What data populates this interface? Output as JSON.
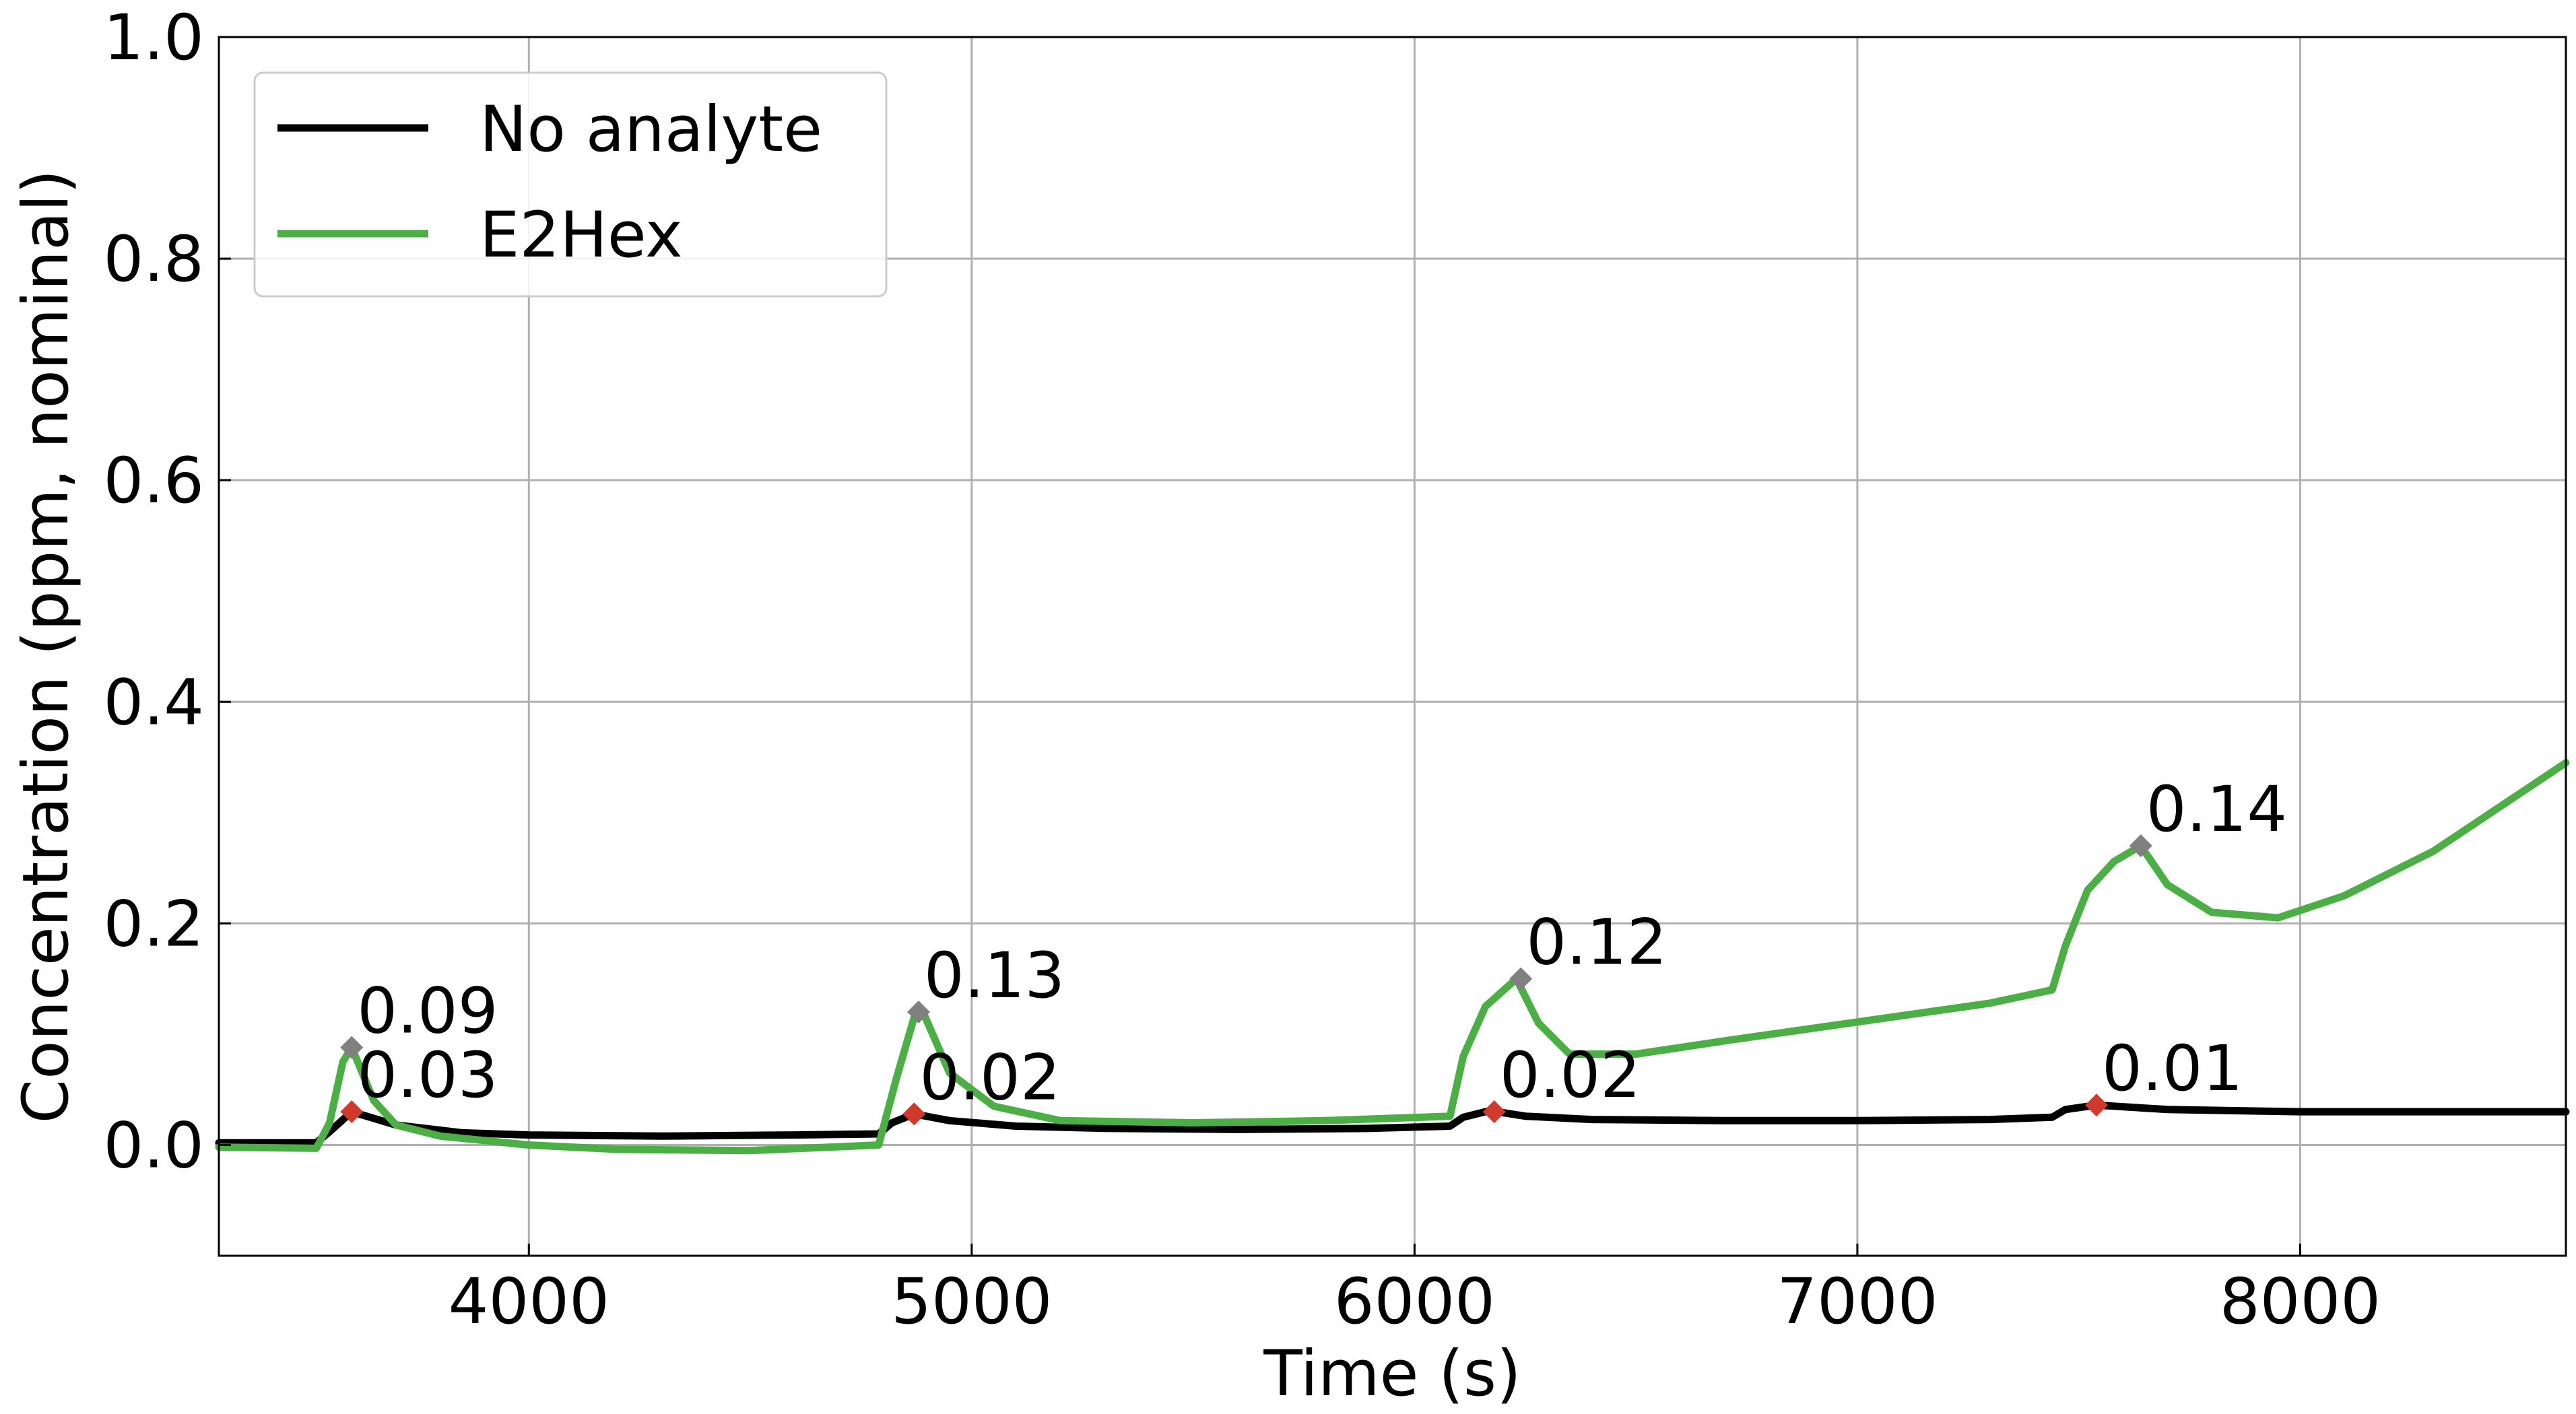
{
  "chart_data": {
    "type": "line",
    "title": "",
    "xlabel": "Time (s)",
    "ylabel": "Concentration (ppm, nominal)",
    "xlim": [
      3300,
      8600
    ],
    "ylim": [
      -0.1,
      1.0
    ],
    "xticks": [
      4000,
      5000,
      6000,
      7000,
      8000
    ],
    "xtick_labels": [
      "4000",
      "5000",
      "6000",
      "7000",
      "8000"
    ],
    "yticks": [
      0.0,
      0.2,
      0.4,
      0.6,
      0.8,
      1.0
    ],
    "ytick_labels": [
      "0.0",
      "0.2",
      "0.4",
      "0.6",
      "0.8",
      "1.0"
    ],
    "grid": true,
    "legend_position": "top-left",
    "series": [
      {
        "name": "No analyte",
        "color": "#000000",
        "x": [
          3300,
          3520,
          3550,
          3600,
          3700,
          3850,
          4000,
          4300,
          4600,
          4790,
          4820,
          4870,
          4950,
          5100,
          5300,
          5600,
          5900,
          6080,
          6110,
          6170,
          6250,
          6400,
          6700,
          7000,
          7300,
          7440,
          7470,
          7540,
          7700,
          8000,
          8300,
          8600
        ],
        "y": [
          0.002,
          0.002,
          0.012,
          0.03,
          0.018,
          0.011,
          0.009,
          0.008,
          0.009,
          0.01,
          0.02,
          0.028,
          0.022,
          0.017,
          0.015,
          0.014,
          0.015,
          0.017,
          0.025,
          0.031,
          0.026,
          0.023,
          0.022,
          0.022,
          0.023,
          0.025,
          0.032,
          0.036,
          0.032,
          0.03,
          0.03,
          0.03
        ]
      },
      {
        "name": "E2Hex",
        "color": "#4caf45",
        "x": [
          3300,
          3520,
          3550,
          3580,
          3600,
          3650,
          3700,
          3800,
          4000,
          4200,
          4500,
          4790,
          4830,
          4870,
          4890,
          4950,
          5050,
          5200,
          5500,
          5800,
          6080,
          6110,
          6160,
          6230,
          6280,
          6350,
          6500,
          6700,
          7000,
          7300,
          7440,
          7470,
          7520,
          7580,
          7640,
          7700,
          7800,
          7950,
          8100,
          8300,
          8600
        ],
        "y": [
          -0.002,
          -0.003,
          0.02,
          0.075,
          0.088,
          0.04,
          0.018,
          0.008,
          0.0,
          -0.004,
          -0.005,
          0.0,
          0.06,
          0.115,
          0.12,
          0.065,
          0.035,
          0.022,
          0.02,
          0.022,
          0.026,
          0.08,
          0.125,
          0.15,
          0.11,
          0.082,
          0.082,
          0.094,
          0.111,
          0.128,
          0.14,
          0.18,
          0.23,
          0.256,
          0.27,
          0.235,
          0.21,
          0.205,
          0.225,
          0.265,
          0.345
        ]
      }
    ],
    "markers": [
      {
        "series": "E2Hex",
        "x": 3600,
        "y": 0.088,
        "color": "#808080",
        "label": "0.09"
      },
      {
        "series": "No analyte",
        "x": 3600,
        "y": 0.03,
        "color": "#d03a2c",
        "label": "0.03"
      },
      {
        "series": "E2Hex",
        "x": 4880,
        "y": 0.12,
        "color": "#808080",
        "label": "0.13"
      },
      {
        "series": "No analyte",
        "x": 4870,
        "y": 0.028,
        "color": "#d03a2c",
        "label": "0.02"
      },
      {
        "series": "E2Hex",
        "x": 6240,
        "y": 0.15,
        "color": "#808080",
        "label": "0.12"
      },
      {
        "series": "No analyte",
        "x": 6180,
        "y": 0.03,
        "color": "#d03a2c",
        "label": "0.02"
      },
      {
        "series": "E2Hex",
        "x": 7640,
        "y": 0.27,
        "color": "#808080",
        "label": "0.14"
      },
      {
        "series": "No analyte",
        "x": 7540,
        "y": 0.036,
        "color": "#d03a2c",
        "label": "0.01"
      }
    ]
  }
}
